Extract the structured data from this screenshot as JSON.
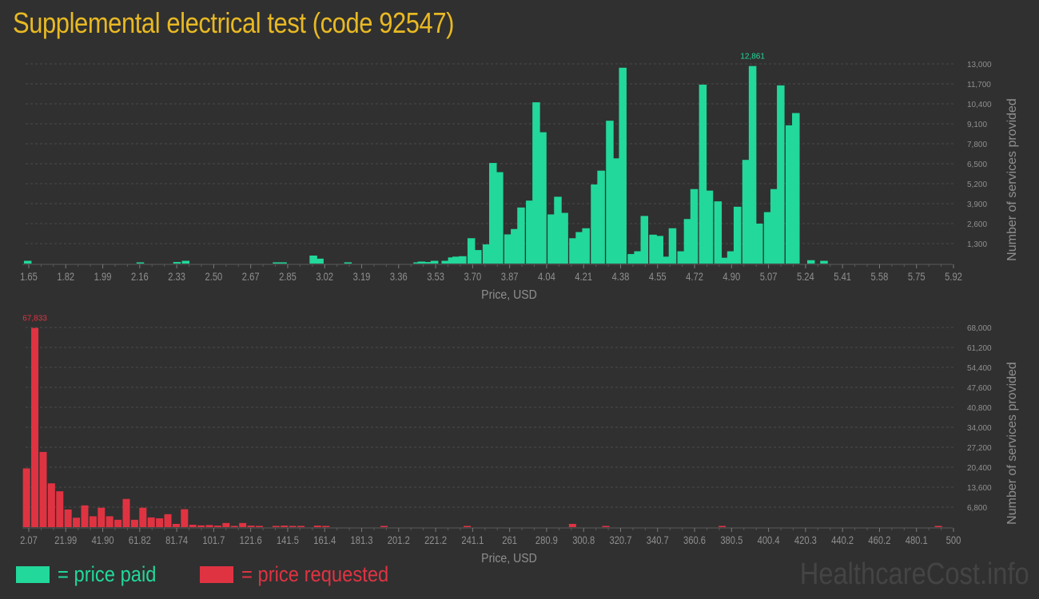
{
  "title": "Supplemental electrical test (code 92547)",
  "colors": {
    "background": "#303030",
    "title": "#e8b923",
    "paid": "#22d89b",
    "requested": "#e03342",
    "axis_text": "#8f8f8f",
    "grid": "#4a4a4a",
    "watermark": "#444444"
  },
  "legend": {
    "paid_label": "= price paid",
    "requested_label": "= price requested"
  },
  "watermark": "HealthcareCost.info",
  "chart_data": [
    {
      "type": "bar",
      "title": "Price paid distribution",
      "xlabel": "Price, USD",
      "ylabel": "Number of services provided",
      "ylim": [
        0,
        13000
      ],
      "grid": true,
      "legend_position": "bottom-left",
      "x_tick_labels": [
        "1.65",
        "1.82",
        "1.99",
        "2.16",
        "2.33",
        "2.50",
        "2.67",
        "2.85",
        "3.02",
        "3.19",
        "3.36",
        "3.53",
        "3.70",
        "3.87",
        "4.04",
        "4.21",
        "4.38",
        "4.55",
        "4.72",
        "4.90",
        "5.07",
        "5.24",
        "5.41",
        "5.58",
        "5.75",
        "5.92"
      ],
      "y_tick_labels": [
        "1,300",
        "2,600",
        "3,900",
        "5,200",
        "6,500",
        "7,800",
        "9,100",
        "10,400",
        "11,700",
        "13,000"
      ],
      "peak_label": "12,861",
      "bars": [
        {
          "x": 1.66,
          "value": 180
        },
        {
          "x": 2.18,
          "value": 40
        },
        {
          "x": 2.35,
          "value": 100
        },
        {
          "x": 2.39,
          "value": 180
        },
        {
          "x": 2.81,
          "value": 40
        },
        {
          "x": 2.84,
          "value": 40
        },
        {
          "x": 2.98,
          "value": 520
        },
        {
          "x": 3.01,
          "value": 320
        },
        {
          "x": 3.14,
          "value": 40
        },
        {
          "x": 3.46,
          "value": 40
        },
        {
          "x": 3.48,
          "value": 130
        },
        {
          "x": 3.51,
          "value": 100
        },
        {
          "x": 3.54,
          "value": 180
        },
        {
          "x": 3.59,
          "value": 180
        },
        {
          "x": 3.62,
          "value": 400
        },
        {
          "x": 3.64,
          "value": 450
        },
        {
          "x": 3.67,
          "value": 480
        },
        {
          "x": 3.71,
          "value": 1650
        },
        {
          "x": 3.74,
          "value": 880
        },
        {
          "x": 3.78,
          "value": 1250
        },
        {
          "x": 3.81,
          "value": 6550
        },
        {
          "x": 3.84,
          "value": 5950
        },
        {
          "x": 3.88,
          "value": 1900
        },
        {
          "x": 3.91,
          "value": 2250
        },
        {
          "x": 3.94,
          "value": 3650
        },
        {
          "x": 3.98,
          "value": 4100
        },
        {
          "x": 4.01,
          "value": 10500
        },
        {
          "x": 4.04,
          "value": 8550
        },
        {
          "x": 4.08,
          "value": 3200
        },
        {
          "x": 4.11,
          "value": 4350
        },
        {
          "x": 4.14,
          "value": 3300
        },
        {
          "x": 4.18,
          "value": 1650
        },
        {
          "x": 4.21,
          "value": 2050
        },
        {
          "x": 4.24,
          "value": 2300
        },
        {
          "x": 4.28,
          "value": 5150
        },
        {
          "x": 4.31,
          "value": 6050
        },
        {
          "x": 4.35,
          "value": 9300
        },
        {
          "x": 4.38,
          "value": 6850
        },
        {
          "x": 4.41,
          "value": 12750
        },
        {
          "x": 4.45,
          "value": 620
        },
        {
          "x": 4.48,
          "value": 800
        },
        {
          "x": 4.51,
          "value": 3100
        },
        {
          "x": 4.55,
          "value": 1880
        },
        {
          "x": 4.58,
          "value": 1800
        },
        {
          "x": 4.61,
          "value": 450
        },
        {
          "x": 4.64,
          "value": 2300
        },
        {
          "x": 4.68,
          "value": 800
        },
        {
          "x": 4.71,
          "value": 2900
        },
        {
          "x": 4.74,
          "value": 4850
        },
        {
          "x": 4.78,
          "value": 11650
        },
        {
          "x": 4.81,
          "value": 4750
        },
        {
          "x": 4.85,
          "value": 4050
        },
        {
          "x": 4.88,
          "value": 380
        },
        {
          "x": 4.91,
          "value": 800
        },
        {
          "x": 4.94,
          "value": 3700
        },
        {
          "x": 4.98,
          "value": 6750
        },
        {
          "x": 5.01,
          "value": 12861
        },
        {
          "x": 5.04,
          "value": 2600
        },
        {
          "x": 5.08,
          "value": 3350
        },
        {
          "x": 5.11,
          "value": 4850
        },
        {
          "x": 5.14,
          "value": 11600
        },
        {
          "x": 5.18,
          "value": 9000
        },
        {
          "x": 5.21,
          "value": 9800
        },
        {
          "x": 5.28,
          "value": 220
        },
        {
          "x": 5.34,
          "value": 180
        }
      ]
    },
    {
      "type": "bar",
      "title": "Price requested distribution",
      "xlabel": "Price, USD",
      "ylabel": "Number of services provided",
      "ylim": [
        0,
        68000
      ],
      "grid": true,
      "legend_position": "bottom-left",
      "x_tick_labels": [
        "2.07",
        "21.99",
        "41.90",
        "61.82",
        "81.74",
        "101.7",
        "121.6",
        "141.5",
        "161.4",
        "181.3",
        "201.2",
        "221.2",
        "241.1",
        "261",
        "280.9",
        "300.8",
        "320.7",
        "340.7",
        "360.6",
        "380.5",
        "400.4",
        "420.3",
        "440.2",
        "460.2",
        "480.1",
        "500"
      ],
      "y_tick_labels": [
        "6,800",
        "13,600",
        "20,400",
        "27,200",
        "34,000",
        "40,800",
        "47,600",
        "54,400",
        "61,200",
        "68,000"
      ],
      "peak_label": "67,833",
      "bars": [
        {
          "x": 0.5,
          "value": 20000
        },
        {
          "x": 5.0,
          "value": 67833
        },
        {
          "x": 9.5,
          "value": 25600
        },
        {
          "x": 14.0,
          "value": 14900
        },
        {
          "x": 18.5,
          "value": 12200
        },
        {
          "x": 23.0,
          "value": 6000
        },
        {
          "x": 27.5,
          "value": 3200
        },
        {
          "x": 32.0,
          "value": 7400
        },
        {
          "x": 36.5,
          "value": 3700
        },
        {
          "x": 41.0,
          "value": 6600
        },
        {
          "x": 45.5,
          "value": 3700
        },
        {
          "x": 50.0,
          "value": 2500
        },
        {
          "x": 54.5,
          "value": 9600
        },
        {
          "x": 59.0,
          "value": 2500
        },
        {
          "x": 63.5,
          "value": 6600
        },
        {
          "x": 68.0,
          "value": 3300
        },
        {
          "x": 72.5,
          "value": 3000
        },
        {
          "x": 77.0,
          "value": 4400
        },
        {
          "x": 81.5,
          "value": 1100
        },
        {
          "x": 86.0,
          "value": 6100
        },
        {
          "x": 90.5,
          "value": 800
        },
        {
          "x": 95.0,
          "value": 600
        },
        {
          "x": 99.5,
          "value": 700
        },
        {
          "x": 104.0,
          "value": 500
        },
        {
          "x": 108.5,
          "value": 1400
        },
        {
          "x": 113.0,
          "value": 200
        },
        {
          "x": 117.5,
          "value": 1400
        },
        {
          "x": 122.0,
          "value": 500
        },
        {
          "x": 126.5,
          "value": 200
        },
        {
          "x": 135.5,
          "value": 200
        },
        {
          "x": 140.0,
          "value": 500
        },
        {
          "x": 144.5,
          "value": 200
        },
        {
          "x": 149.0,
          "value": 200
        },
        {
          "x": 158.0,
          "value": 500
        },
        {
          "x": 162.5,
          "value": 200
        },
        {
          "x": 194.0,
          "value": 200
        },
        {
          "x": 239.0,
          "value": 200
        },
        {
          "x": 296.0,
          "value": 1100
        },
        {
          "x": 314.0,
          "value": 200
        },
        {
          "x": 377.0,
          "value": 200
        },
        {
          "x": 494.0,
          "value": 200
        }
      ]
    }
  ]
}
